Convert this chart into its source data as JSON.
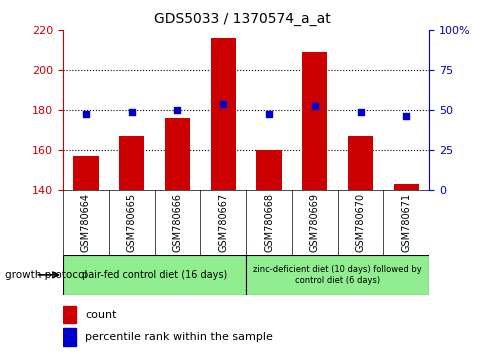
{
  "title": "GDS5033 / 1370574_a_at",
  "samples": [
    "GSM780664",
    "GSM780665",
    "GSM780666",
    "GSM780667",
    "GSM780668",
    "GSM780669",
    "GSM780670",
    "GSM780671"
  ],
  "counts": [
    157,
    167,
    176,
    216,
    160,
    209,
    167,
    143
  ],
  "percentiles": [
    178,
    179,
    180,
    183,
    178,
    182,
    179,
    177
  ],
  "ylim_left": [
    140,
    220
  ],
  "ylim_right": [
    0,
    100
  ],
  "yticks_left": [
    140,
    160,
    180,
    200,
    220
  ],
  "yticks_right": [
    0,
    25,
    50,
    75,
    100
  ],
  "bar_color": "#cc0000",
  "dot_color": "#0000cc",
  "bar_bottom": 140,
  "group1_label": "pair-fed control diet (16 days)",
  "group2_label": "zinc-deficient diet (10 days) followed by\ncontrol diet (6 days)",
  "protocol_label": "growth protocol",
  "legend_count": "count",
  "legend_pct": "percentile rank within the sample",
  "left_axis_color": "#cc0000",
  "right_axis_color": "#0000cc",
  "sample_box_color": "#d3d3d3",
  "group_box_color": "#90ee90",
  "plot_bg": "#ffffff",
  "grid_yticks": [
    160,
    180,
    200
  ]
}
